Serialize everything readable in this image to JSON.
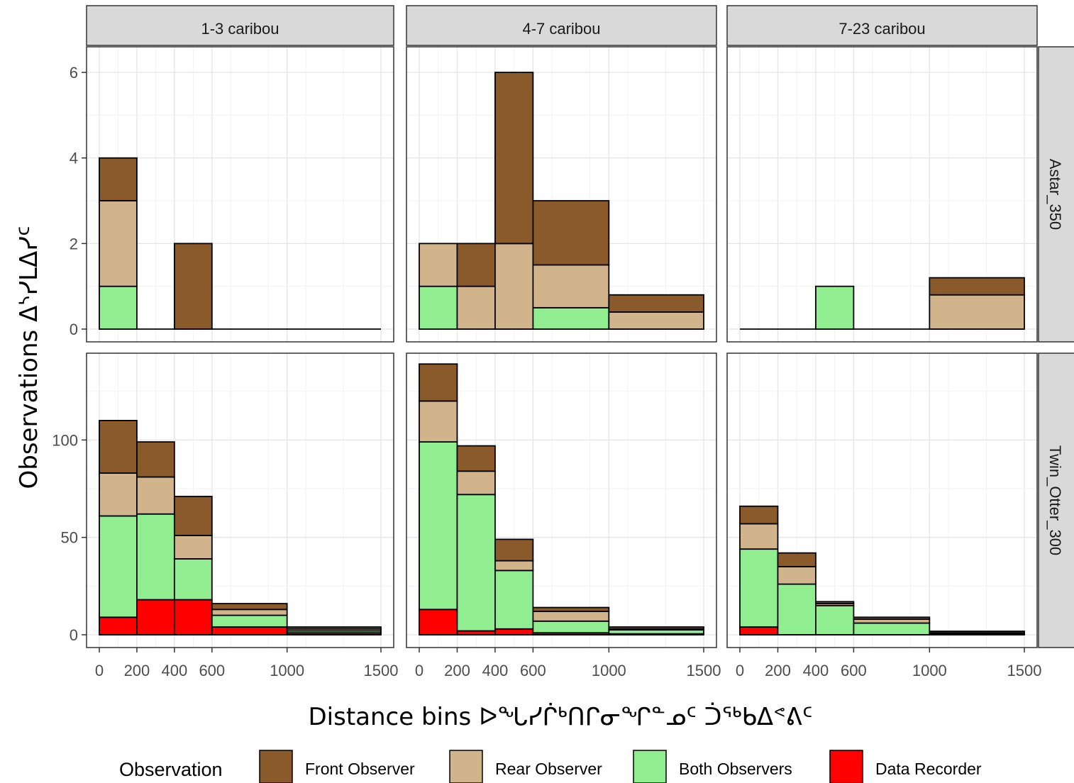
{
  "chart_data": {
    "type": "bar",
    "subtype": "faceted stacked histogram",
    "xlabel": "Distance bins   ᐅᖓᓯᒌᒃᑎᒋᓂᖏᓐᓄᑦ ᑑᖅᑲᐃᕝᕕᑦ",
    "ylabel": "Observations  ᐃᔅᓯᒪᐃᓯᑦ",
    "columns": [
      "1-3 caribou",
      "4-7 caribou",
      "7-23 caribou"
    ],
    "rows": [
      "Astar_350",
      "Twin_Otter_300"
    ],
    "x_ticks": [
      0,
      200,
      400,
      600,
      1000,
      1500
    ],
    "xlim": [
      0,
      1500
    ],
    "y_ticks_by_row": [
      [
        0,
        2,
        4,
        6
      ],
      [
        0,
        50,
        100
      ]
    ],
    "ylim_by_row": [
      [
        0,
        6.3
      ],
      [
        0,
        138
      ]
    ],
    "grid": true,
    "bins": [
      [
        0,
        200
      ],
      [
        200,
        400
      ],
      [
        400,
        600
      ],
      [
        600,
        1000
      ],
      [
        1000,
        1500
      ]
    ],
    "legend": {
      "title": "Observation",
      "position": "bottom",
      "items": [
        {
          "label": "Front Observer",
          "color": "#8B5A2B"
        },
        {
          "label": "Rear Observer",
          "color": "#D2B48C"
        },
        {
          "label": "Both Observers",
          "color": "#90EE90"
        },
        {
          "label": "Data Recorder",
          "color": "#FF0000"
        }
      ]
    },
    "stack_order": [
      "Data Recorder",
      "Both Observers",
      "Rear Observer",
      "Front Observer"
    ],
    "panels": [
      {
        "row": 0,
        "col": 0,
        "stacks": [
          [
            0,
            1,
            2,
            1
          ],
          [
            0,
            0,
            0,
            0
          ],
          [
            0,
            0,
            0,
            2
          ],
          [
            0,
            0,
            0,
            0
          ],
          [
            0,
            0,
            0,
            0
          ]
        ]
      },
      {
        "row": 0,
        "col": 1,
        "stacks": [
          [
            0,
            1,
            1,
            0
          ],
          [
            0,
            0,
            1,
            1
          ],
          [
            0,
            0,
            2,
            4
          ],
          [
            0,
            0.5,
            1,
            1.5
          ],
          [
            0,
            0,
            0.4,
            0.4
          ]
        ]
      },
      {
        "row": 0,
        "col": 2,
        "stacks": [
          [
            0,
            0,
            0,
            0
          ],
          [
            0,
            0,
            0,
            0
          ],
          [
            0,
            1,
            0,
            0
          ],
          [
            0,
            0,
            0,
            0
          ],
          [
            0,
            0,
            0.8,
            0.4
          ]
        ]
      },
      {
        "row": 1,
        "col": 0,
        "stacks": [
          [
            9,
            52,
            22,
            27
          ],
          [
            18,
            44,
            19,
            18
          ],
          [
            18,
            21,
            12,
            20
          ],
          [
            4,
            6,
            3,
            3
          ],
          [
            1,
            1,
            1,
            1
          ]
        ]
      },
      {
        "row": 1,
        "col": 1,
        "stacks": [
          [
            13,
            86,
            21,
            19
          ],
          [
            2,
            70,
            12,
            13
          ],
          [
            3,
            30,
            5,
            11
          ],
          [
            1,
            6,
            5,
            2
          ],
          [
            0.5,
            2,
            0.5,
            1
          ]
        ]
      },
      {
        "row": 1,
        "col": 2,
        "stacks": [
          [
            4,
            40,
            13,
            9
          ],
          [
            0,
            26,
            9,
            7
          ],
          [
            0,
            15,
            1,
            1
          ],
          [
            0,
            6,
            2,
            1
          ],
          [
            0.5,
            0.5,
            0,
            0.8
          ]
        ]
      }
    ]
  }
}
